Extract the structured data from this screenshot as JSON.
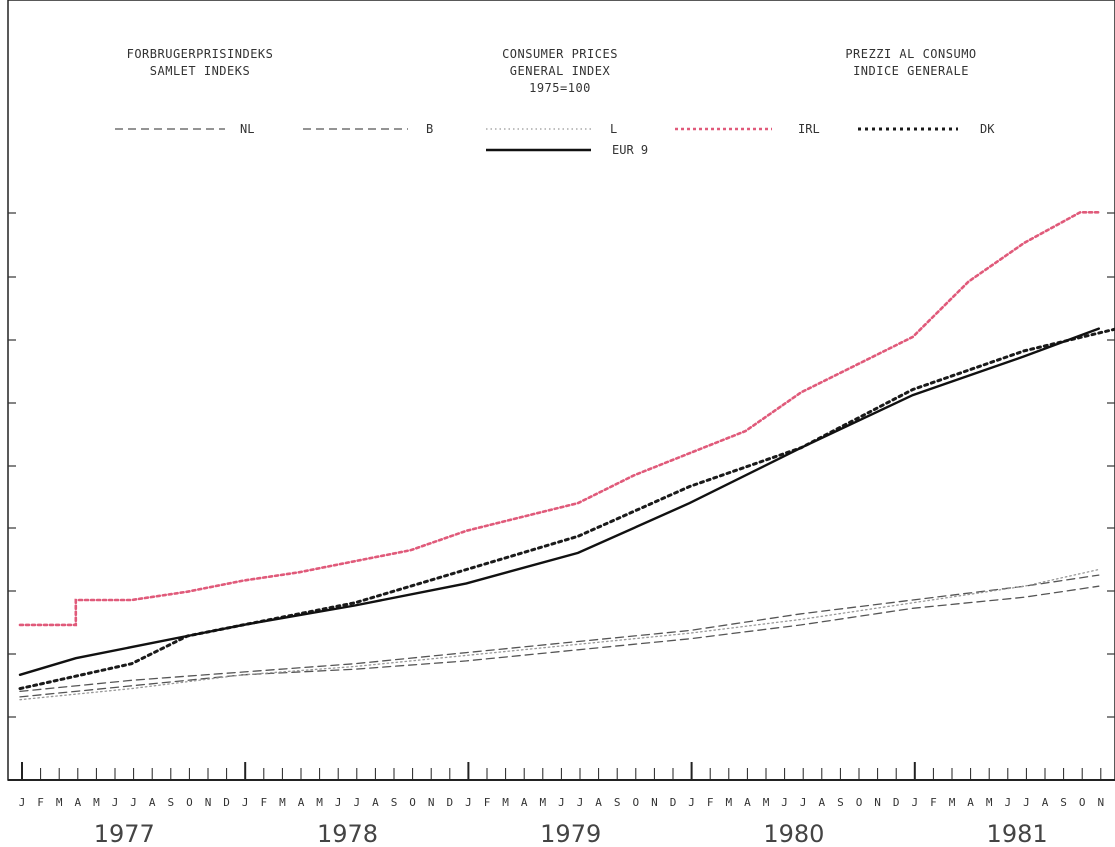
{
  "header": {
    "danish": [
      "FORBRUGERPRISINDEKS",
      "SAMLET INDEKS"
    ],
    "english": [
      "CONSUMER PRICES",
      "GENERAL INDEX",
      "1975=100"
    ],
    "italian": [
      "PREZZI AL CONSUMO",
      "INDICE GENERALE"
    ]
  },
  "chart_data": {
    "type": "line",
    "title": "CONSUMER PRICES GENERAL INDEX 1975=100",
    "x_axis": {
      "month_labels": [
        "J",
        "F",
        "M",
        "A",
        "M",
        "J",
        "J",
        "A",
        "S",
        "O",
        "N",
        "D"
      ],
      "years": [
        "1977",
        "1978",
        "1979",
        "1980",
        "1981"
      ]
    },
    "series": [
      {
        "name": "NL",
        "style": "dashed",
        "color": "#555555",
        "points": [
          [
            0,
            110
          ],
          [
            6,
            114
          ],
          [
            12,
            118
          ],
          [
            18,
            120
          ],
          [
            24,
            123
          ],
          [
            30,
            127
          ],
          [
            36,
            131
          ],
          [
            42,
            136
          ],
          [
            48,
            142
          ],
          [
            54,
            146
          ],
          [
            58,
            150
          ]
        ]
      },
      {
        "name": "B",
        "style": "dashed",
        "color": "#555555",
        "points": [
          [
            0,
            112
          ],
          [
            6,
            116
          ],
          [
            12,
            119
          ],
          [
            18,
            122
          ],
          [
            24,
            126
          ],
          [
            30,
            130
          ],
          [
            36,
            134
          ],
          [
            42,
            140
          ],
          [
            48,
            145
          ],
          [
            54,
            150
          ],
          [
            58,
            154
          ]
        ]
      },
      {
        "name": "L",
        "style": "dotted-light",
        "color": "#999999",
        "points": [
          [
            0,
            109
          ],
          [
            6,
            113
          ],
          [
            12,
            118
          ],
          [
            18,
            121
          ],
          [
            24,
            125
          ],
          [
            30,
            129
          ],
          [
            36,
            133
          ],
          [
            42,
            138
          ],
          [
            48,
            144
          ],
          [
            54,
            150
          ],
          [
            58,
            156
          ]
        ]
      },
      {
        "name": "IRL",
        "style": "dotted-step",
        "color": "#e05a7a",
        "points": [
          [
            0,
            136
          ],
          [
            3,
            136
          ],
          [
            3,
            145
          ],
          [
            6,
            145
          ],
          [
            9,
            148
          ],
          [
            12,
            152
          ],
          [
            15,
            155
          ],
          [
            18,
            159
          ],
          [
            21,
            163
          ],
          [
            24,
            170
          ],
          [
            27,
            175
          ],
          [
            30,
            180
          ],
          [
            33,
            190
          ],
          [
            36,
            198
          ],
          [
            39,
            206
          ],
          [
            42,
            220
          ],
          [
            45,
            230
          ],
          [
            48,
            240
          ],
          [
            51,
            260
          ],
          [
            54,
            274
          ],
          [
            57,
            285
          ],
          [
            58,
            285
          ]
        ]
      },
      {
        "name": "DK",
        "style": "dotted-heavy",
        "color": "#1a1a1a",
        "points": [
          [
            0,
            113
          ],
          [
            6,
            122
          ],
          [
            9,
            132
          ],
          [
            12,
            136
          ],
          [
            18,
            144
          ],
          [
            24,
            156
          ],
          [
            30,
            168
          ],
          [
            36,
            186
          ],
          [
            42,
            200
          ],
          [
            48,
            221
          ],
          [
            54,
            235
          ],
          [
            59,
            243
          ]
        ]
      },
      {
        "name": "EUR 9",
        "style": "solid",
        "color": "#111111",
        "points": [
          [
            0,
            118
          ],
          [
            3,
            124
          ],
          [
            6,
            128
          ],
          [
            9,
            132
          ],
          [
            12,
            136
          ],
          [
            18,
            143
          ],
          [
            24,
            151
          ],
          [
            30,
            162
          ],
          [
            36,
            180
          ],
          [
            42,
            200
          ],
          [
            48,
            219
          ],
          [
            54,
            233
          ],
          [
            58,
            243
          ]
        ]
      }
    ]
  }
}
